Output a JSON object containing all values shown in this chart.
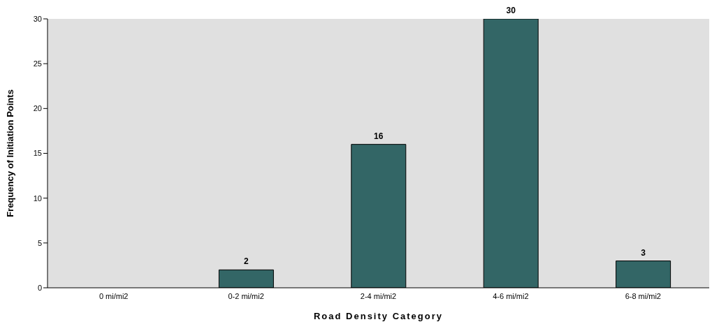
{
  "chart_data": {
    "type": "bar",
    "xlabel": "Road Density Category",
    "ylabel": "Frequency of Initiation Points",
    "categories": [
      "0 mi/mi2",
      "0-2 mi/mi2",
      "2-4 mi/mi2",
      "4-6 mi/mi2",
      "6-8 mi/mi2"
    ],
    "values": [
      0,
      2,
      16,
      30,
      3
    ],
    "value_labels": [
      null,
      "2",
      "16",
      "30",
      "3"
    ],
    "color": "#336666",
    "ylim": [
      0,
      30
    ],
    "yticks": [
      0,
      5,
      10,
      15,
      20,
      25,
      30
    ],
    "grid": false
  }
}
